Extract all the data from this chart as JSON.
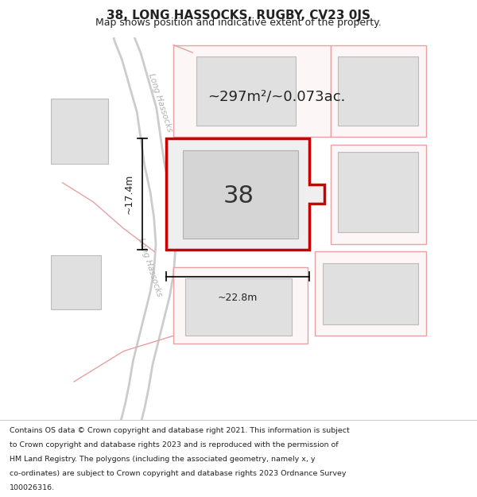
{
  "title": "38, LONG HASSOCKS, RUGBY, CV23 0JS",
  "subtitle": "Map shows position and indicative extent of the property.",
  "footer_lines": [
    "Contains OS data © Crown copyright and database right 2021. This information is subject",
    "to Crown copyright and database rights 2023 and is reproduced with the permission of",
    "HM Land Registry. The polygons (including the associated geometry, namely x, y",
    "co-ordinates) are subject to Crown copyright and database rights 2023 Ordnance Survey",
    "100026316."
  ],
  "bg_color": "#f0f0f0",
  "road_color": "#ffffff",
  "road_outline_color": "#cccccc",
  "building_fill": "#e0e0e0",
  "building_edge": "#bbbbbb",
  "highlight_edge": "#cc0000",
  "highlight_lw": 2.5,
  "other_outline_color": "#e8a0a0",
  "area_text": "~297m²/~0.073ac.",
  "number_text": "38",
  "dim_width": "~22.8m",
  "dim_height": "~17.4m",
  "street_label": "Long Hassocks"
}
